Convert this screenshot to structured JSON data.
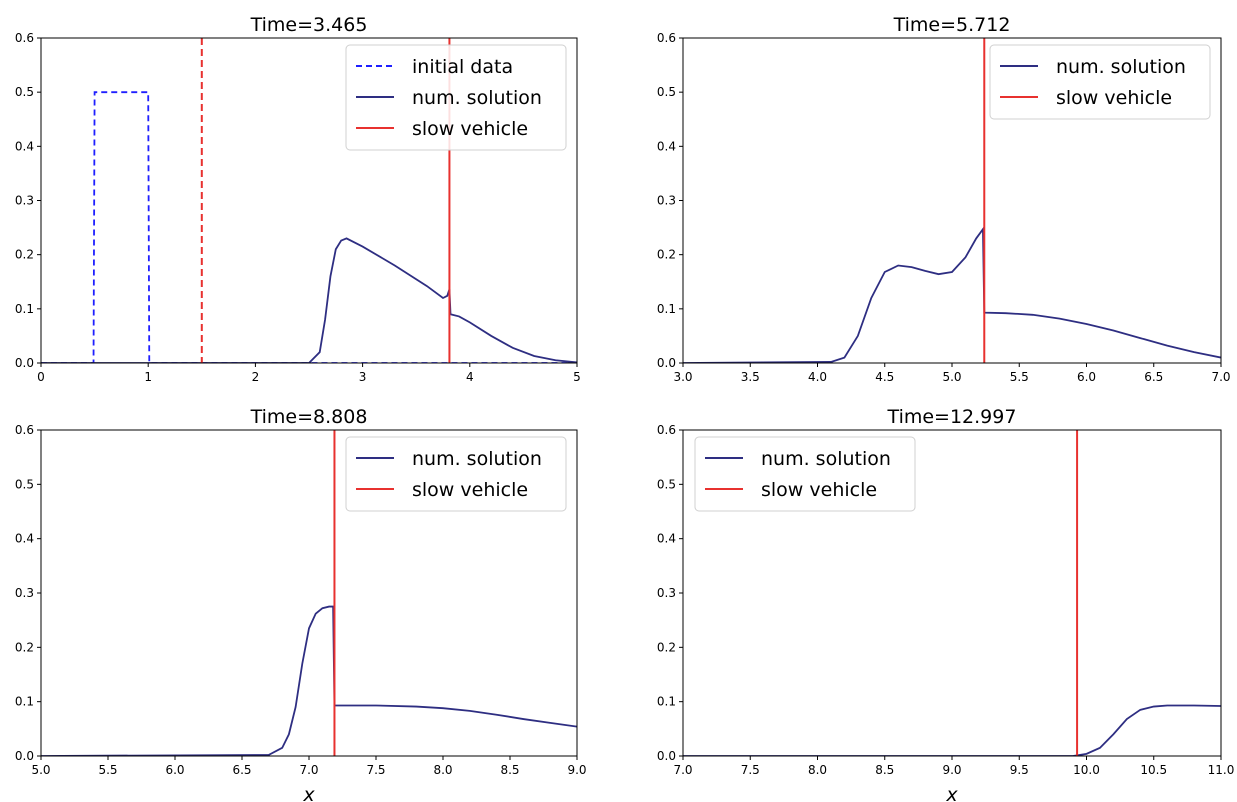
{
  "chart_data": [
    {
      "type": "line",
      "title": "Time=3.465",
      "xlabel": "",
      "ylabel": "",
      "xlim": [
        0,
        5
      ],
      "ylim": [
        0,
        0.6
      ],
      "xticks": [
        "0",
        "1",
        "2",
        "3",
        "4",
        "5"
      ],
      "yticks": [
        "0.0",
        "0.1",
        "0.2",
        "0.3",
        "0.4",
        "0.5",
        "0.6"
      ],
      "legend": {
        "position": "top-right",
        "entries": [
          "initial data",
          "num. solution",
          "slow vehicle"
        ]
      },
      "series": [
        {
          "name": "initial data",
          "style": "dashed",
          "color": "#1f1fff",
          "x": [
            0,
            0.49,
            0.5,
            1.0,
            1.01,
            5
          ],
          "y": [
            0,
            0,
            0.5,
            0.5,
            0,
            0
          ]
        },
        {
          "name": "num. solution",
          "style": "solid",
          "color": "#2e2e82",
          "x": [
            0,
            2.5,
            2.6,
            2.65,
            2.7,
            2.75,
            2.8,
            2.85,
            3.0,
            3.3,
            3.6,
            3.75,
            3.79,
            3.81,
            3.82,
            3.9,
            4.0,
            4.2,
            4.4,
            4.6,
            4.8,
            5.0
          ],
          "y": [
            0,
            0,
            0.02,
            0.08,
            0.16,
            0.21,
            0.226,
            0.23,
            0.215,
            0.18,
            0.142,
            0.12,
            0.124,
            0.136,
            0.09,
            0.086,
            0.075,
            0.05,
            0.028,
            0.013,
            0.005,
            0.001
          ]
        }
      ],
      "vlines": [
        {
          "name": "slow vehicle",
          "x": 3.81,
          "style": "solid",
          "color": "#e8312f"
        },
        {
          "x": 1.5,
          "style": "dashed",
          "color": "#e8312f"
        }
      ]
    },
    {
      "type": "line",
      "title": "Time=5.712",
      "xlabel": "",
      "ylabel": "",
      "xlim": [
        3.0,
        7.0
      ],
      "ylim": [
        0,
        0.6
      ],
      "xticks": [
        "3.0",
        "3.5",
        "4.0",
        "4.5",
        "5.0",
        "5.5",
        "6.0",
        "6.5",
        "7.0"
      ],
      "yticks": [
        "0.0",
        "0.1",
        "0.2",
        "0.3",
        "0.4",
        "0.5",
        "0.6"
      ],
      "legend": {
        "position": "top-right",
        "entries": [
          "num. solution",
          "slow vehicle"
        ]
      },
      "series": [
        {
          "name": "num. solution",
          "style": "solid",
          "color": "#2e2e82",
          "x": [
            3.0,
            4.1,
            4.2,
            4.3,
            4.4,
            4.5,
            4.6,
            4.7,
            4.8,
            4.9,
            5.0,
            5.1,
            5.18,
            5.23,
            5.24,
            5.4,
            5.6,
            5.8,
            6.0,
            6.2,
            6.4,
            6.6,
            6.8,
            7.0
          ],
          "y": [
            0,
            0.002,
            0.01,
            0.05,
            0.12,
            0.168,
            0.18,
            0.177,
            0.17,
            0.164,
            0.168,
            0.195,
            0.23,
            0.247,
            0.093,
            0.092,
            0.089,
            0.082,
            0.072,
            0.06,
            0.046,
            0.032,
            0.02,
            0.01
          ]
        }
      ],
      "vlines": [
        {
          "name": "slow vehicle",
          "x": 5.24,
          "style": "solid",
          "color": "#e8312f"
        }
      ]
    },
    {
      "type": "line",
      "title": "Time=8.808",
      "xlabel": "x",
      "ylabel": "",
      "xlim": [
        5.0,
        9.0
      ],
      "ylim": [
        0,
        0.6
      ],
      "xticks": [
        "5.0",
        "5.5",
        "6.0",
        "6.5",
        "7.0",
        "7.5",
        "8.0",
        "8.5",
        "9.0"
      ],
      "yticks": [
        "0.0",
        "0.1",
        "0.2",
        "0.3",
        "0.4",
        "0.5",
        "0.6"
      ],
      "legend": {
        "position": "top-right",
        "entries": [
          "num. solution",
          "slow vehicle"
        ]
      },
      "series": [
        {
          "name": "num. solution",
          "style": "solid",
          "color": "#2e2e82",
          "x": [
            5.0,
            6.7,
            6.8,
            6.85,
            6.9,
            6.95,
            7.0,
            7.05,
            7.1,
            7.15,
            7.18,
            7.19,
            7.5,
            7.8,
            8.0,
            8.2,
            8.4,
            8.6,
            8.8,
            9.0
          ],
          "y": [
            0,
            0.002,
            0.015,
            0.04,
            0.09,
            0.17,
            0.235,
            0.262,
            0.272,
            0.275,
            0.275,
            0.093,
            0.093,
            0.091,
            0.088,
            0.083,
            0.076,
            0.068,
            0.061,
            0.054
          ]
        }
      ],
      "vlines": [
        {
          "name": "slow vehicle",
          "x": 7.19,
          "style": "solid",
          "color": "#e8312f"
        }
      ]
    },
    {
      "type": "line",
      "title": "Time=12.997",
      "xlabel": "x",
      "ylabel": "",
      "xlim": [
        7.0,
        11.0
      ],
      "ylim": [
        0,
        0.6
      ],
      "xticks": [
        "7.0",
        "7.5",
        "8.0",
        "8.5",
        "9.0",
        "9.5",
        "10.0",
        "10.5",
        "11.0"
      ],
      "yticks": [
        "0.0",
        "0.1",
        "0.2",
        "0.3",
        "0.4",
        "0.5",
        "0.6"
      ],
      "legend": {
        "position": "top-left",
        "entries": [
          "num. solution",
          "slow vehicle"
        ]
      },
      "series": [
        {
          "name": "num. solution",
          "style": "solid",
          "color": "#2e2e82",
          "x": [
            7.0,
            9.9,
            10.0,
            10.1,
            10.2,
            10.3,
            10.4,
            10.5,
            10.6,
            10.8,
            11.0
          ],
          "y": [
            0,
            0,
            0.004,
            0.015,
            0.04,
            0.068,
            0.085,
            0.091,
            0.093,
            0.093,
            0.092
          ]
        }
      ],
      "vlines": [
        {
          "name": "slow vehicle",
          "x": 9.93,
          "style": "solid",
          "color": "#e8312f"
        }
      ]
    }
  ]
}
